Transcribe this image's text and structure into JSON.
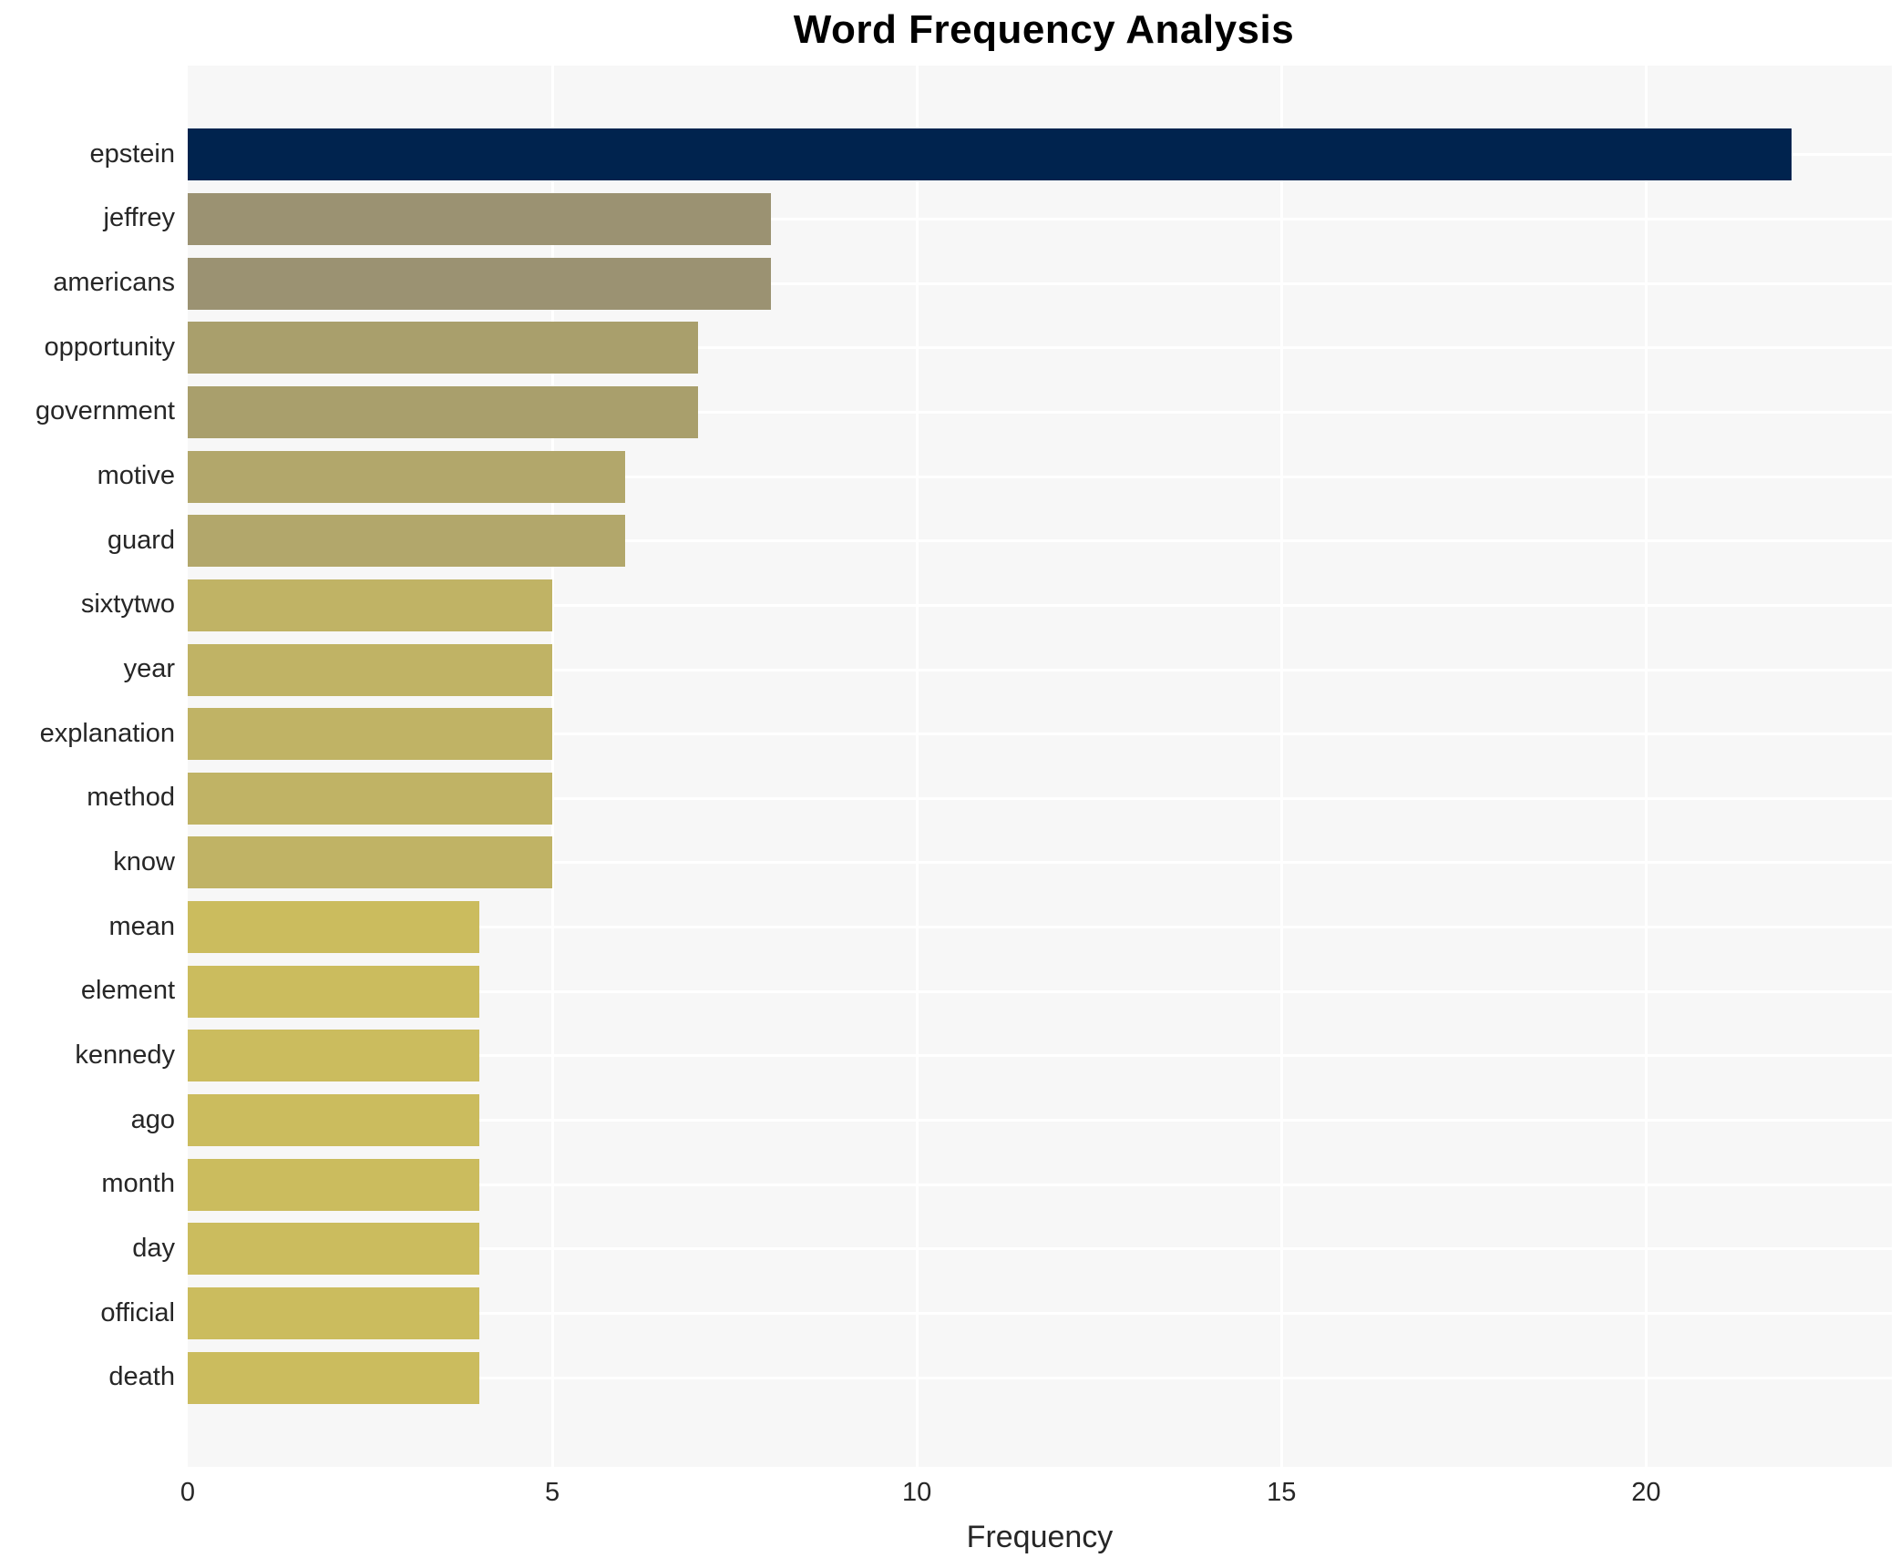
{
  "chart_data": {
    "type": "bar",
    "orientation": "horizontal",
    "title": "Word Frequency Analysis",
    "xlabel": "Frequency",
    "ylabel": "",
    "categories": [
      "epstein",
      "jeffrey",
      "americans",
      "opportunity",
      "government",
      "motive",
      "guard",
      "sixtytwo",
      "year",
      "explanation",
      "method",
      "know",
      "mean",
      "element",
      "kennedy",
      "ago",
      "month",
      "day",
      "official",
      "death"
    ],
    "values": [
      22,
      8,
      8,
      7,
      7,
      6,
      6,
      5,
      5,
      5,
      5,
      5,
      4,
      4,
      4,
      4,
      4,
      4,
      4,
      4
    ],
    "bar_colors": [
      "#00234e",
      "#9b9272",
      "#9b9272",
      "#a99f6c",
      "#a99f6c",
      "#b2a76b",
      "#b2a76b",
      "#c0b365",
      "#c0b365",
      "#c0b365",
      "#c0b365",
      "#c0b365",
      "#cbbc5e",
      "#cbbc5e",
      "#cbbc5e",
      "#cbbc5e",
      "#cbbc5e",
      "#cbbc5e",
      "#cbbc5e",
      "#cbbc5e"
    ],
    "xticks": [
      0,
      5,
      10,
      15,
      20
    ],
    "xlim": [
      0,
      23.37
    ],
    "grid": true,
    "grid_color": "#ffffff",
    "panel_background": "#f7f7f7",
    "text_color": "#262626",
    "legend": "none"
  }
}
